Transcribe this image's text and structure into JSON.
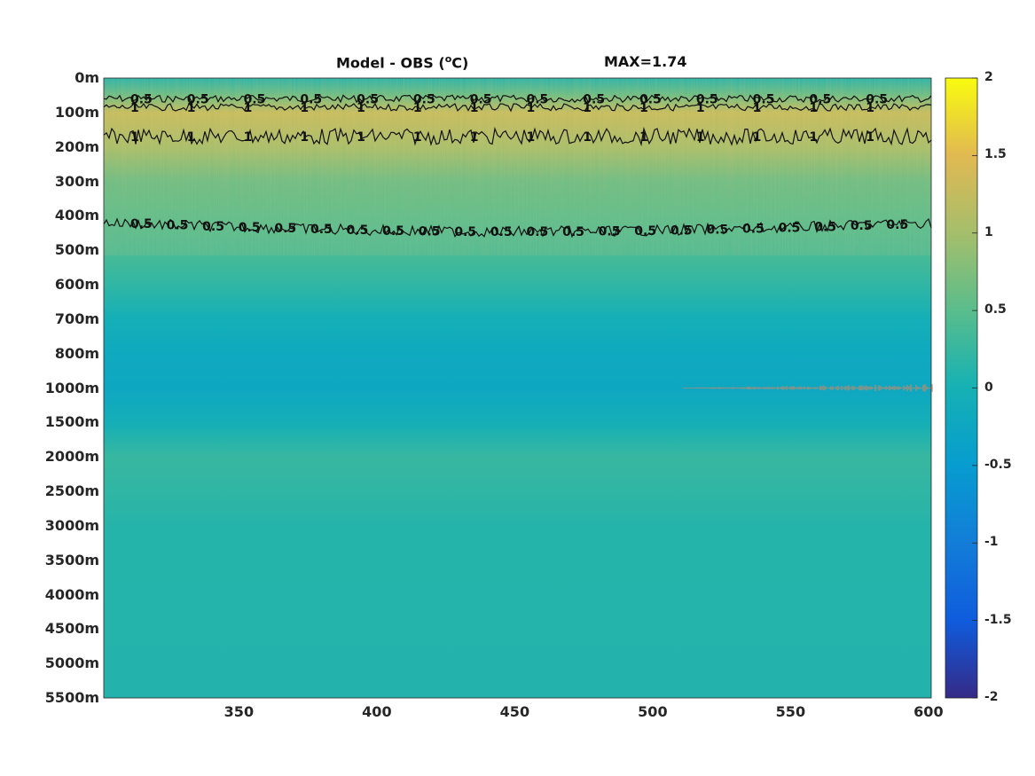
{
  "title": {
    "left_prefix": "Model - OBS (",
    "left_sup": "o",
    "left_suffix": "C)",
    "right": "MAX=1.74"
  },
  "chart_data": {
    "type": "heatmap",
    "title": "Model - OBS (°C)",
    "max_label": "MAX=1.74",
    "xlabel": "",
    "ylabel": "",
    "xlim": [
      301,
      601
    ],
    "x_ticks": [
      "350",
      "400",
      "450",
      "500",
      "550",
      "600"
    ],
    "y_ticks": [
      "0m",
      "100m",
      "200m",
      "300m",
      "400m",
      "500m",
      "600m",
      "700m",
      "800m",
      "1000m",
      "1500m",
      "2000m",
      "2500m",
      "3000m",
      "3500m",
      "4000m",
      "4500m",
      "5000m",
      "5500m"
    ],
    "colorbar": {
      "range": [
        -2,
        2
      ],
      "ticks": [
        "2",
        "1.5",
        "1",
        "0.5",
        "0",
        "-0.5",
        "-1",
        "-1.5",
        "-2"
      ],
      "colormap": "parula"
    },
    "depth_profile": [
      {
        "depth": "0m",
        "value": 0.1
      },
      {
        "depth": "50m",
        "value": 0.6
      },
      {
        "depth": "100m",
        "value": 1.25
      },
      {
        "depth": "200m",
        "value": 1.0
      },
      {
        "depth": "300m",
        "value": 0.6
      },
      {
        "depth": "400m",
        "value": 0.5
      },
      {
        "depth": "500m",
        "value": 0.4
      },
      {
        "depth": "600m",
        "value": 0.2
      },
      {
        "depth": "700m",
        "value": -0.05
      },
      {
        "depth": "800m",
        "value": -0.2
      },
      {
        "depth": "1000m",
        "value": -0.25
      },
      {
        "depth": "1500m",
        "value": -0.05
      },
      {
        "depth": "2000m",
        "value": 0.25
      },
      {
        "depth": "2500m",
        "value": 0.2
      },
      {
        "depth": "3000m",
        "value": 0.12
      },
      {
        "depth": "5500m",
        "value": 0.1
      }
    ],
    "contours": [
      {
        "level": 0.5,
        "label": "0.5",
        "approx_depth": "60m"
      },
      {
        "level": 1,
        "label": "1",
        "approx_depth": "85m"
      },
      {
        "level": 1,
        "label": "1",
        "approx_depth": "170m"
      },
      {
        "level": 0.5,
        "label": "0.5",
        "approx_depth": "420m"
      }
    ],
    "grid": false
  }
}
